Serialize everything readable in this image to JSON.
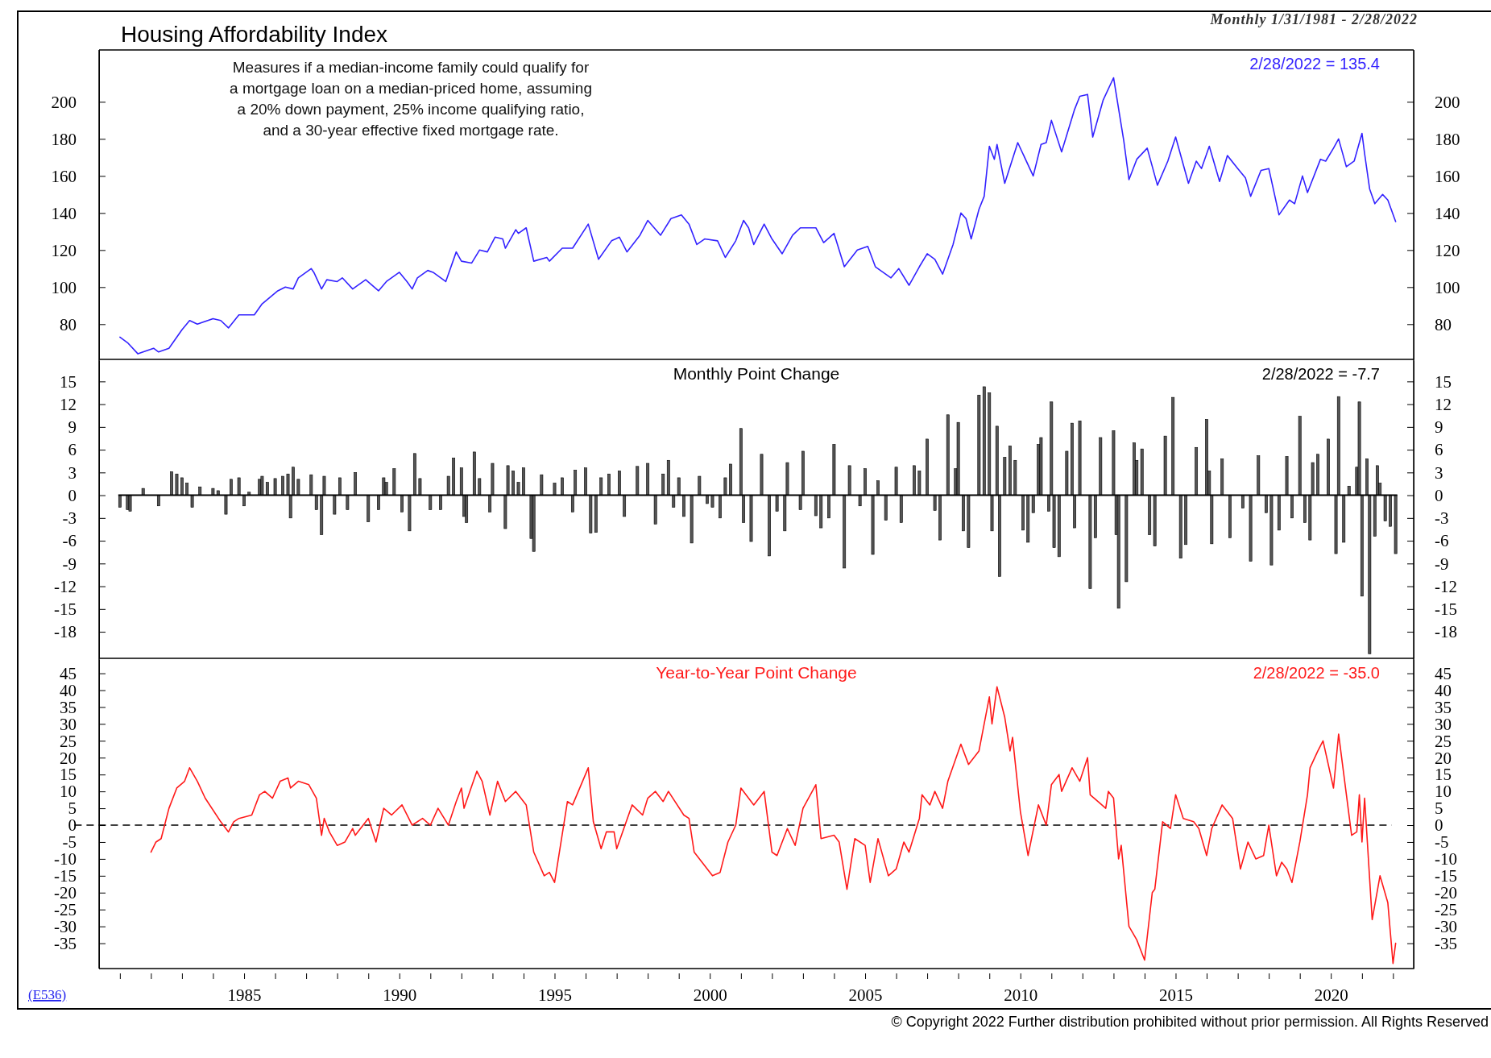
{
  "chart_data": [
    {
      "type": "line",
      "title": "Housing Affordability Index",
      "subtitle": "Monthly 1/31/1981 - 2/28/2022",
      "color": "#3322ff",
      "annotations": [
        "Measures if a median-income family could qualify for\na mortgage loan on a median-priced home, assuming\na 20% down payment, 25% income qualifying ratio,\nand a 30-year effective fixed mortgage rate.",
        "2/28/2022 = 135.4"
      ],
      "x": [
        "1981-01",
        "1981-04",
        "1981-08",
        "1981-10",
        "1982-02",
        "1982-04",
        "1982-08",
        "1983-01",
        "1983-04",
        "1983-07",
        "1984-01",
        "1984-04",
        "1984-07",
        "1984-11",
        "1985-05",
        "1985-08",
        "1986-02",
        "1986-05",
        "1986-08",
        "1986-10",
        "1987-03",
        "1987-04",
        "1987-07",
        "1987-09",
        "1988-01",
        "1988-03",
        "1988-07",
        "1988-12",
        "1989-05",
        "1989-08",
        "1990-01",
        "1990-04",
        "1990-06",
        "1990-08",
        "1990-12",
        "1991-02",
        "1991-07",
        "1991-11",
        "1992-01",
        "1992-05",
        "1992-08",
        "1992-11",
        "1993-02",
        "1993-05",
        "1993-06",
        "1993-10",
        "1993-11",
        "1994-02",
        "1994-05",
        "1994-10",
        "1994-11",
        "1995-04",
        "1995-08",
        "1996-02",
        "1996-06",
        "1996-11",
        "1997-02",
        "1997-05",
        "1997-10",
        "1998-01",
        "1998-06",
        "1998-10",
        "1999-02",
        "1999-05",
        "1999-08",
        "1999-11",
        "2000-04",
        "2000-07",
        "2000-11",
        "2001-02",
        "2001-04",
        "2001-06",
        "2001-10",
        "2002-01",
        "2002-05",
        "2002-09",
        "2002-12",
        "2003-06",
        "2003-09",
        "2004-01",
        "2004-05",
        "2004-10",
        "2005-02",
        "2005-05",
        "2005-11",
        "2006-02",
        "2006-06",
        "2006-10",
        "2007-01",
        "2007-04",
        "2007-07",
        "2007-11",
        "2008-02",
        "2008-04",
        "2008-06",
        "2008-09",
        "2008-11",
        "2009-01",
        "2009-03",
        "2009-04",
        "2009-07",
        "2009-12",
        "2010-06",
        "2010-09",
        "2010-11",
        "2011-01",
        "2011-05",
        "2011-10",
        "2011-12",
        "2012-03",
        "2012-05",
        "2012-09",
        "2013-01",
        "2013-05",
        "2013-07",
        "2013-10",
        "2014-02",
        "2014-06",
        "2014-10",
        "2015-01",
        "2015-06",
        "2015-09",
        "2015-11",
        "2016-02",
        "2016-06",
        "2016-09",
        "2017-01",
        "2017-04",
        "2017-06",
        "2017-10",
        "2018-01",
        "2018-05",
        "2018-09",
        "2018-11",
        "2019-02",
        "2019-04",
        "2019-09",
        "2019-11",
        "2020-02",
        "2020-04",
        "2020-07",
        "2020-10",
        "2021-01",
        "2021-02",
        "2021-04",
        "2021-06",
        "2021-09",
        "2021-11",
        "2022-02"
      ],
      "values": [
        73,
        70,
        64,
        65,
        67,
        65,
        67,
        77,
        82,
        80,
        83,
        82,
        78,
        85,
        85,
        91,
        98,
        100,
        99,
        105,
        110,
        108,
        99,
        104,
        103,
        105,
        99,
        104,
        98,
        103,
        108,
        103,
        99,
        105,
        109,
        108,
        103,
        119,
        114,
        113,
        120,
        119,
        127,
        126,
        121,
        131,
        129,
        132,
        114,
        116,
        114,
        121,
        121,
        134,
        115,
        125,
        127,
        119,
        128,
        136,
        128,
        137,
        139,
        134,
        123,
        126,
        125,
        116,
        125,
        136,
        132,
        123,
        134,
        126,
        118,
        128,
        132,
        132,
        124,
        129,
        111,
        120,
        122,
        111,
        105,
        110,
        101,
        111,
        118,
        115,
        107,
        123,
        140,
        137,
        126,
        142,
        149,
        176,
        169,
        177,
        156,
        178,
        160,
        177,
        178,
        190,
        173,
        196,
        203,
        204,
        181,
        201,
        213,
        179,
        158,
        169,
        175,
        155,
        168,
        181,
        156,
        168,
        164,
        176,
        157,
        171,
        164,
        159,
        149,
        163,
        164,
        139,
        147,
        145,
        160,
        151,
        169,
        168,
        175,
        180,
        165,
        168,
        183,
        172,
        153,
        145,
        150,
        147,
        135.4
      ],
      "xlim": [
        "1980-05",
        "2022-09"
      ],
      "ylim": [
        61,
        228
      ],
      "yticks": [
        80,
        100,
        120,
        140,
        160,
        180,
        200
      ],
      "y2lim": [
        61,
        228
      ],
      "y2ticks": [
        80,
        100,
        120,
        140,
        160,
        180,
        200
      ],
      "tick_labels": "y"
    },
    {
      "type": "bar",
      "title": "Monthly Point Change",
      "color": "#555555",
      "annotations": [
        "2/28/2022 = -7.7"
      ],
      "x": [
        "1981-01",
        "1981-04",
        "1981-05",
        "1981-10",
        "1982-04",
        "1982-09",
        "1982-11",
        "1983-01",
        "1983-03",
        "1983-05",
        "1983-08",
        "1984-01",
        "1984-03",
        "1984-06",
        "1984-08",
        "1984-11",
        "1985-01",
        "1985-03",
        "1985-07",
        "1985-08",
        "1985-10",
        "1986-01",
        "1986-04",
        "1986-06",
        "1986-07",
        "1986-08",
        "1986-10",
        "1987-03",
        "1987-05",
        "1987-07",
        "1987-08",
        "1987-12",
        "1988-02",
        "1988-05",
        "1988-08",
        "1989-01",
        "1989-05",
        "1989-07",
        "1989-08",
        "1989-11",
        "1990-02",
        "1990-05",
        "1990-07",
        "1990-09",
        "1991-01",
        "1991-05",
        "1991-08",
        "1991-10",
        "1992-01",
        "1992-02",
        "1992-03",
        "1992-06",
        "1992-08",
        "1992-12",
        "1993-01",
        "1993-06",
        "1993-07",
        "1993-09",
        "1993-11",
        "1994-01",
        "1994-04",
        "1994-05",
        "1994-08",
        "1995-01",
        "1995-04",
        "1995-08",
        "1995-09",
        "1996-01",
        "1996-03",
        "1996-05",
        "1996-07",
        "1996-10",
        "1997-02",
        "1997-04",
        "1997-09",
        "1998-01",
        "1998-04",
        "1998-07",
        "1998-09",
        "1998-11",
        "1999-01",
        "1999-03",
        "1999-06",
        "1999-09",
        "1999-12",
        "2000-02",
        "2000-05",
        "2000-07",
        "2000-09",
        "2001-01",
        "2001-02",
        "2001-05",
        "2001-09",
        "2001-12",
        "2002-03",
        "2002-06",
        "2002-07",
        "2002-12",
        "2003-01",
        "2003-06",
        "2003-08",
        "2003-11",
        "2004-01",
        "2004-05",
        "2004-07",
        "2004-11",
        "2005-01",
        "2005-04",
        "2005-06",
        "2005-09",
        "2006-01",
        "2006-03",
        "2006-08",
        "2006-10",
        "2007-01",
        "2007-04",
        "2007-06",
        "2007-09",
        "2007-12",
        "2008-01",
        "2008-03",
        "2008-05",
        "2008-09",
        "2008-11",
        "2009-01",
        "2009-02",
        "2009-04",
        "2009-05",
        "2009-07",
        "2009-09",
        "2009-11",
        "2010-02",
        "2010-04",
        "2010-06",
        "2010-08",
        "2010-09",
        "2010-12",
        "2011-01",
        "2011-02",
        "2011-04",
        "2011-07",
        "2011-09",
        "2011-10",
        "2011-12",
        "2012-04",
        "2012-06",
        "2012-08",
        "2013-01",
        "2013-02",
        "2013-03",
        "2013-06",
        "2013-09",
        "2013-10",
        "2013-12",
        "2014-03",
        "2014-05",
        "2014-09",
        "2014-12",
        "2015-03",
        "2015-05",
        "2015-09",
        "2016-01",
        "2016-02",
        "2016-03",
        "2016-07",
        "2016-10",
        "2017-03",
        "2017-06",
        "2017-09",
        "2017-12",
        "2018-02",
        "2018-05",
        "2018-08",
        "2018-10",
        "2019-01",
        "2019-03",
        "2019-05",
        "2019-06",
        "2019-08",
        "2019-12",
        "2020-03",
        "2020-04",
        "2020-06",
        "2020-08",
        "2020-11",
        "2020-12",
        "2021-01",
        "2021-03",
        "2021-04",
        "2021-06",
        "2021-07",
        "2021-08",
        "2021-10",
        "2021-12",
        "2022-02"
      ],
      "values": [
        -1.6,
        -1.9,
        -2.1,
        0.9,
        -1.4,
        3.1,
        2.8,
        2.3,
        1.6,
        -1.6,
        1.1,
        0.9,
        0.6,
        -2.5,
        2.1,
        2.3,
        -1.4,
        0.4,
        2.1,
        2.5,
        1.7,
        2.2,
        2.5,
        2.8,
        -3,
        3.7,
        2.1,
        2.7,
        -1.9,
        -5.2,
        2.5,
        -2.5,
        2.3,
        -1.9,
        3,
        -3.5,
        -1.9,
        2.3,
        1.7,
        3.5,
        -2.2,
        -4.7,
        5.5,
        2.2,
        -1.9,
        -1.9,
        2.5,
        4.9,
        3.6,
        -2.8,
        -3.6,
        5.7,
        2.2,
        -2.2,
        4.2,
        -4.4,
        3.9,
        3.2,
        1.7,
        3.6,
        -5.7,
        -7.4,
        2.7,
        1.6,
        2.3,
        -2.2,
        3.3,
        3.6,
        -5,
        -4.9,
        2.3,
        2.8,
        3.2,
        -2.8,
        3.8,
        4.2,
        -3.8,
        2.8,
        4.6,
        -1.6,
        2.3,
        -2.8,
        -6.3,
        2.5,
        -1.1,
        -1.6,
        -3,
        2.3,
        4.1,
        8.8,
        -3.6,
        -6.1,
        5.4,
        -8,
        -2.1,
        -4.7,
        4.3,
        -1.9,
        5.8,
        -2.7,
        -4.3,
        -3,
        6.7,
        -9.6,
        3.9,
        -1.4,
        3.5,
        -7.8,
        1.9,
        -3.3,
        3.7,
        -3.6,
        3.9,
        3.2,
        7.4,
        -2,
        -5.9,
        10.6,
        3.5,
        9.6,
        -4.7,
        -6.9,
        13.2,
        14.3,
        13.5,
        -4.7,
        9.1,
        -10.7,
        5,
        6.5,
        4.6,
        -4.6,
        -6.2,
        -2.3,
        6.7,
        7.6,
        -2.1,
        12.3,
        -6.9,
        -8.1,
        5.8,
        9.5,
        -4.3,
        9.8,
        -12.3,
        -5.6,
        7.6,
        8.5,
        -5.2,
        -14.9,
        -11.4,
        6.9,
        4.6,
        6.1,
        -5.2,
        -6.7,
        7.8,
        12.9,
        -8.3,
        -6.5,
        6.3,
        10,
        3.2,
        -6.4,
        4.8,
        -5.6,
        -1.7,
        -8.7,
        5.2,
        -2.3,
        -9.2,
        -4.6,
        5.1,
        -3,
        10.4,
        -3.6,
        -5.9,
        4.3,
        5.4,
        7.4,
        -7.7,
        13,
        -6.2,
        1.2,
        3.7,
        12.3,
        -13.3,
        4.8,
        -20.9,
        -5.4,
        3.9,
        1.6,
        -3.4,
        -4.1,
        -7.7
      ],
      "xlim": [
        "1980-05",
        "2022-09"
      ],
      "ylim": [
        -21.5,
        17.8
      ],
      "yticks": [
        -18,
        -15,
        -12,
        -9,
        -6,
        -3,
        0,
        3,
        6,
        9,
        12,
        15
      ],
      "y2lim": [
        -21.5,
        17.8
      ],
      "y2ticks": [
        -18,
        -15,
        -12,
        -9,
        -6,
        -3,
        0,
        3,
        6,
        9,
        12,
        15
      ],
      "tick_labels": "y"
    },
    {
      "type": "line",
      "title": "Year-to-Year Point Change",
      "color": "#ff1a1a",
      "annotations": [
        "2/28/2022 = -35.0",
        "(E536)",
        "© Copyright 2022  Further distribution prohibited without prior permission.  All Rights Reserved"
      ],
      "ref_lines": [
        {
          "axis": "y",
          "value": 0,
          "color": "#000000",
          "line_style": "dashed"
        }
      ],
      "x": [
        "1982-01",
        "1982-03",
        "1982-05",
        "1982-08",
        "1982-11",
        "1983-02",
        "1983-04",
        "1983-07",
        "1983-10",
        "1984-04",
        "1984-07",
        "1984-09",
        "1984-11",
        "1985-04",
        "1985-07",
        "1985-09",
        "1985-12",
        "1986-03",
        "1986-06",
        "1986-07",
        "1986-10",
        "1987-02",
        "1987-05",
        "1987-07",
        "1987-08",
        "1987-10",
        "1988-01",
        "1988-04",
        "1988-07",
        "1988-08",
        "1989-01",
        "1989-04",
        "1989-07",
        "1989-10",
        "1990-02",
        "1990-06",
        "1990-10",
        "1991-01",
        "1991-04",
        "1991-08",
        "1991-11",
        "1992-01",
        "1992-02",
        "1992-07",
        "1992-09",
        "1992-12",
        "1993-03",
        "1993-06",
        "1993-10",
        "1994-02",
        "1994-05",
        "1994-09",
        "1994-11",
        "1995-01",
        "1995-06",
        "1995-08",
        "1996-02",
        "1996-04",
        "1996-07",
        "1996-09",
        "1996-12",
        "1997-01",
        "1997-07",
        "1997-11",
        "1998-01",
        "1998-04",
        "1998-07",
        "1998-09",
        "1999-03",
        "1999-05",
        "1999-07",
        "1999-11",
        "2000-02",
        "2000-05",
        "2000-08",
        "2000-11",
        "2001-01",
        "2001-03",
        "2001-06",
        "2001-10",
        "2002-01",
        "2002-03",
        "2002-07",
        "2002-10",
        "2003-01",
        "2003-06",
        "2003-08",
        "2004-01",
        "2004-03",
        "2004-06",
        "2004-09",
        "2005-01",
        "2005-03",
        "2005-06",
        "2005-10",
        "2006-01",
        "2006-04",
        "2006-06",
        "2006-10",
        "2006-11",
        "2007-02",
        "2007-04",
        "2007-07",
        "2007-09",
        "2008-02",
        "2008-05",
        "2008-09",
        "2009-01",
        "2009-02",
        "2009-04",
        "2009-07",
        "2009-09",
        "2009-10",
        "2010-01",
        "2010-04",
        "2010-08",
        "2010-11",
        "2011-01",
        "2011-04",
        "2011-05",
        "2011-09",
        "2011-12",
        "2012-03",
        "2012-04",
        "2012-07",
        "2012-10",
        "2012-11",
        "2013-01",
        "2013-03",
        "2013-04",
        "2013-07",
        "2013-10",
        "2014-01",
        "2014-04",
        "2014-05",
        "2014-08",
        "2014-11",
        "2015-01",
        "2015-04",
        "2015-08",
        "2015-10",
        "2016-01",
        "2016-03",
        "2016-07",
        "2016-11",
        "2017-02",
        "2017-05",
        "2017-08",
        "2017-11",
        "2018-01",
        "2018-04",
        "2018-06",
        "2018-08",
        "2018-10",
        "2019-01",
        "2019-04",
        "2019-05",
        "2019-08",
        "2019-10",
        "2020-02",
        "2020-04",
        "2020-09",
        "2020-11",
        "2020-12",
        "2021-01",
        "2021-02",
        "2021-05",
        "2021-08",
        "2021-11",
        "2022-01",
        "2022-02"
      ],
      "values": [
        -8,
        -5,
        -4,
        5,
        11,
        13,
        17,
        13,
        8,
        1,
        -2,
        1,
        2,
        3,
        9,
        10,
        8,
        13,
        14,
        11,
        13,
        12,
        8,
        -3,
        2,
        -2,
        -6,
        -5,
        -1,
        -3,
        2,
        -5,
        5,
        3,
        6,
        0,
        2,
        0,
        5,
        0,
        7,
        11,
        5,
        16,
        13,
        3,
        13,
        7,
        10,
        6,
        -8,
        -15,
        -14,
        -17,
        7,
        6,
        17,
        1,
        -7,
        -2,
        -2,
        -7,
        6,
        3,
        8,
        10,
        7,
        10,
        3,
        2,
        -8,
        -12,
        -15,
        -14,
        -5,
        0,
        11,
        9,
        6,
        10,
        -8,
        -9,
        -1,
        -6,
        5,
        12,
        -4,
        -3,
        -5,
        -19,
        -4,
        -6,
        -17,
        -4,
        -15,
        -13,
        -5,
        -8,
        2,
        9,
        6,
        10,
        5,
        13,
        24,
        18,
        22,
        38,
        30,
        41,
        32,
        22,
        26,
        4,
        -9,
        6,
        0,
        12,
        15,
        10,
        17,
        13,
        20,
        9,
        7,
        5,
        10,
        8,
        -10,
        -6,
        -30,
        -34,
        -40,
        -20,
        -19,
        1,
        -1,
        9,
        2,
        1,
        -1,
        -9,
        -1,
        6,
        2,
        -13,
        -5,
        -10,
        -9,
        0,
        -15,
        -11,
        -13,
        -17,
        -5,
        9,
        17,
        22,
        25,
        11,
        27,
        -3,
        -2,
        9,
        -5,
        8,
        -28,
        -15,
        -23,
        -41,
        -35
      ],
      "xlim": [
        "1980-05",
        "2022-09"
      ],
      "ylim": [
        -42.5,
        49.2
      ],
      "yticks": [
        -35,
        -30,
        -25,
        -20,
        -15,
        -10,
        -5,
        0,
        5,
        10,
        15,
        20,
        25,
        30,
        35,
        40,
        45
      ],
      "y2lim": [
        -42.5,
        49.2
      ],
      "y2ticks": [
        -35,
        -30,
        -25,
        -20,
        -15,
        -10,
        -5,
        0,
        5,
        10,
        15,
        20,
        25,
        30,
        35,
        40,
        45
      ],
      "xticks": [
        {
          "value": "1981",
          "label": null
        },
        {
          "value": "1982",
          "label": null
        },
        {
          "value": "1983",
          "label": null
        },
        {
          "value": "1984",
          "label": null
        },
        {
          "value": "1985",
          "label": "1985"
        },
        {
          "value": "1986",
          "label": null
        },
        {
          "value": "1987",
          "label": null
        },
        {
          "value": "1988",
          "label": null
        },
        {
          "value": "1989",
          "label": null
        },
        {
          "value": "1990",
          "label": "1990"
        },
        {
          "value": "1991",
          "label": null
        },
        {
          "value": "1992",
          "label": null
        },
        {
          "value": "1993",
          "label": null
        },
        {
          "value": "1994",
          "label": null
        },
        {
          "value": "1995",
          "label": "1995"
        },
        {
          "value": "1996",
          "label": null
        },
        {
          "value": "1997",
          "label": null
        },
        {
          "value": "1998",
          "label": null
        },
        {
          "value": "1999",
          "label": null
        },
        {
          "value": "2000",
          "label": "2000"
        },
        {
          "value": "2001",
          "label": null
        },
        {
          "value": "2002",
          "label": null
        },
        {
          "value": "2003",
          "label": null
        },
        {
          "value": "2004",
          "label": null
        },
        {
          "value": "2005",
          "label": "2005"
        },
        {
          "value": "2006",
          "label": null
        },
        {
          "value": "2007",
          "label": null
        },
        {
          "value": "2008",
          "label": null
        },
        {
          "value": "2009",
          "label": null
        },
        {
          "value": "2010",
          "label": "2010"
        },
        {
          "value": "2011",
          "label": null
        },
        {
          "value": "2012",
          "label": null
        },
        {
          "value": "2013",
          "label": null
        },
        {
          "value": "2014",
          "label": null
        },
        {
          "value": "2015",
          "label": "2015"
        },
        {
          "value": "2016",
          "label": null
        },
        {
          "value": "2017",
          "label": null
        },
        {
          "value": "2018",
          "label": null
        },
        {
          "value": "2019",
          "label": null
        },
        {
          "value": "2020",
          "label": "2020"
        },
        {
          "value": "2021",
          "label": null
        },
        {
          "value": "2022",
          "label": null
        }
      ]
    }
  ]
}
